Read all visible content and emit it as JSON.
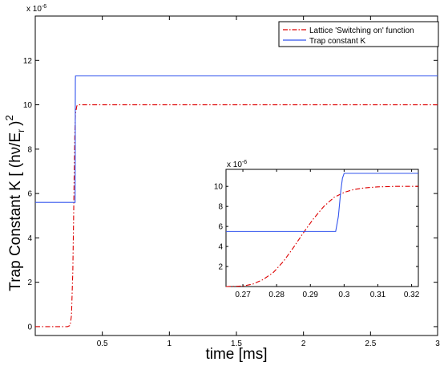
{
  "chart_data": [
    {
      "type": "line",
      "xlabel": "time [ms]",
      "ylabel": "Trap Constant K   [ (hν/E",
      "ylabel_sub": "r",
      "ylabel_tail": ")",
      "ylabel_sup": "2",
      "y_scale_label": "x 10",
      "y_scale_exp": "-6",
      "xlim": [
        0,
        3
      ],
      "ylim": [
        -0.4,
        14
      ],
      "xticks": [
        0.5,
        1,
        1.5,
        2,
        2.5,
        3
      ],
      "xtick_labels": [
        "0.5",
        "1",
        "1.5",
        "2",
        "2.5",
        "3"
      ],
      "yticks": [
        0,
        2,
        4,
        6,
        8,
        10,
        12
      ],
      "ytick_labels": [
        "0",
        "2",
        "4",
        "6",
        "8",
        "10",
        "12"
      ],
      "grid": false,
      "legend_position": "top-right",
      "series": [
        {
          "name": "Lattice 'Switching  on' function",
          "color": "#dd0000",
          "style": "dash-dot",
          "x": [
            0,
            0.24,
            0.26,
            0.27,
            0.28,
            0.285,
            0.29,
            0.295,
            0.3,
            0.31,
            0.32,
            0.35,
            3
          ],
          "y": [
            0,
            0,
            0.05,
            0.5,
            2.5,
            4.5,
            6.8,
            8.7,
            9.6,
            9.95,
            10,
            10,
            10
          ]
        },
        {
          "name": "Trap constant K",
          "color": "#3355ee",
          "style": "solid",
          "x": [
            0,
            0.297,
            0.298,
            0.2985,
            0.299,
            0.3,
            3
          ],
          "y": [
            5.6,
            5.6,
            7.5,
            10.2,
            11.1,
            11.3,
            11.3
          ]
        }
      ]
    },
    {
      "type": "line",
      "role": "inset",
      "xlim": [
        0.265,
        0.322
      ],
      "ylim": [
        0,
        11.7
      ],
      "xticks": [
        0.27,
        0.28,
        0.29,
        0.3,
        0.31,
        0.32
      ],
      "xtick_labels": [
        "0.27",
        "0.28",
        "0.29",
        "0.3",
        "0.31",
        "0.32"
      ],
      "yticks": [
        2,
        4,
        6,
        8,
        10
      ],
      "ytick_labels": [
        "2",
        "4",
        "6",
        "8",
        "10"
      ],
      "y_scale_label": "x 10",
      "y_scale_exp": "-6",
      "series": [
        {
          "name": "Lattice 'Switching  on' function",
          "color": "#dd0000",
          "style": "dash-dot",
          "x": [
            0.265,
            0.27,
            0.273,
            0.276,
            0.279,
            0.282,
            0.285,
            0.288,
            0.291,
            0.294,
            0.297,
            0.3,
            0.303,
            0.306,
            0.31,
            0.315,
            0.322
          ],
          "y": [
            0,
            0.05,
            0.25,
            0.7,
            1.4,
            2.5,
            3.9,
            5.4,
            6.8,
            8.0,
            8.9,
            9.4,
            9.7,
            9.85,
            9.95,
            10,
            10
          ]
        },
        {
          "name": "Trap constant K",
          "color": "#3355ee",
          "style": "solid",
          "x": [
            0.265,
            0.2975,
            0.2983,
            0.299,
            0.2995,
            0.3,
            0.322
          ],
          "y": [
            5.5,
            5.5,
            7.0,
            9.5,
            10.8,
            11.3,
            11.3
          ]
        }
      ]
    }
  ]
}
